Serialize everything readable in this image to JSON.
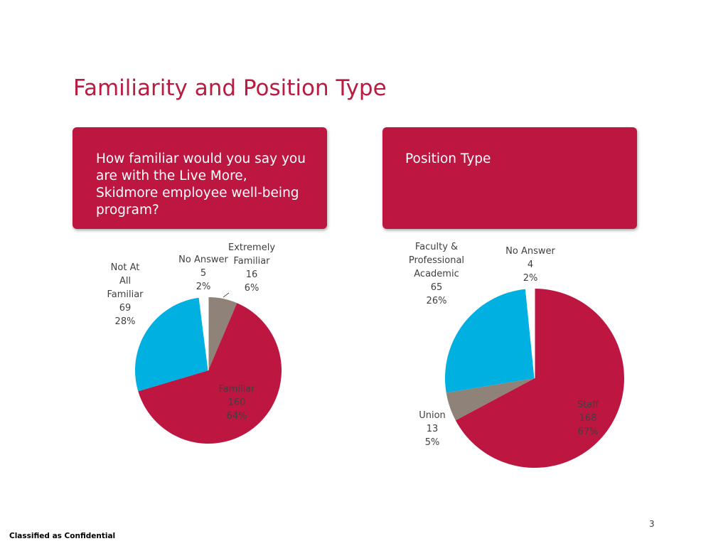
{
  "slide": {
    "title": "Familiarity and Position Type",
    "page_number": "3",
    "footer": "Classified as Confidential"
  },
  "cards": {
    "left_question": "How familiar would you say you are with the Live More, Skidmore employee well-being program?",
    "right_question": "Position Type"
  },
  "colors": {
    "accent": "#bd1640",
    "blue": "#00b0e0",
    "gray": "#8f8379",
    "white": "#ffffff"
  },
  "chart_data": [
    {
      "type": "pie",
      "slices": [
        {
          "label": "Extremely Familiar",
          "count": "16",
          "percent": "6%",
          "value": 16,
          "color": "#8f8379"
        },
        {
          "label": "Familiar",
          "count": "160",
          "percent": "64%",
          "value": 160,
          "color": "#bd1640"
        },
        {
          "label": "Not At All Familiar",
          "count": "69",
          "percent": "28%",
          "value": 69,
          "color": "#00b0e0"
        },
        {
          "label": "No Answer",
          "count": "5",
          "percent": "2%",
          "value": 5,
          "color": "#ffffff"
        }
      ]
    },
    {
      "type": "pie",
      "slices": [
        {
          "label": "Staff",
          "count": "168",
          "percent": "67%",
          "value": 168,
          "color": "#bd1640"
        },
        {
          "label": "Union",
          "count": "13",
          "percent": "5%",
          "value": 13,
          "color": "#8f8379"
        },
        {
          "label": "Faculty & Professional Academic",
          "count": "65",
          "percent": "26%",
          "value": 65,
          "color": "#00b0e0"
        },
        {
          "label": "No Answer",
          "count": "4",
          "percent": "2%",
          "value": 4,
          "color": "#ffffff"
        }
      ]
    }
  ]
}
